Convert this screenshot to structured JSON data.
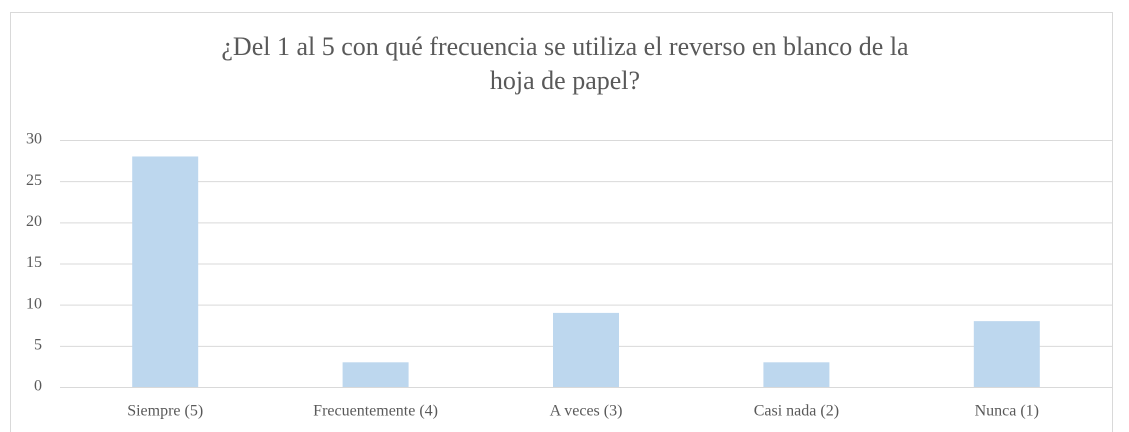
{
  "chart_data": {
    "type": "bar",
    "title": "¿Del 1 al 5 con qué frecuencia se utiliza el reverso en blanco de la hoja de papel?",
    "categories": [
      "Siempre (5)",
      "Frecuentemente (4)",
      "A veces (3)",
      "Casi nada (2)",
      "Nunca (1)"
    ],
    "values": [
      28,
      3,
      9,
      3,
      8
    ],
    "color": "#bdd7ee",
    "ylim": [
      0,
      30
    ],
    "yticks": [
      0,
      5,
      10,
      15,
      20,
      25,
      30
    ],
    "grid": true
  }
}
